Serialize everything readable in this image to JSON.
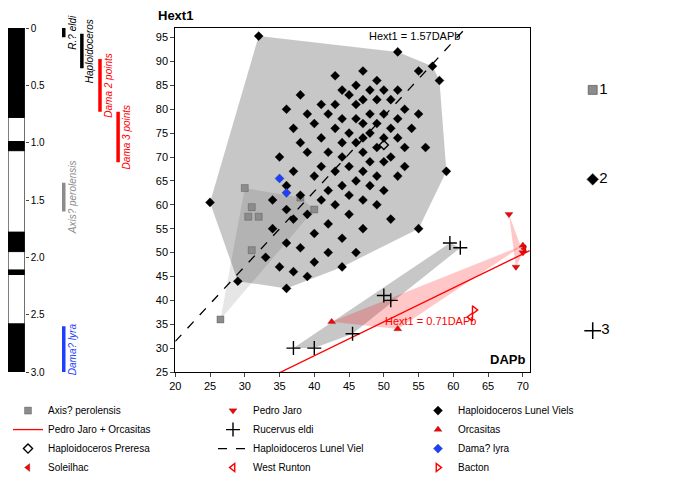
{
  "chart_data": [
    {
      "type": "scatter",
      "xlabel": "DAPb",
      "ylabel": "Hext1",
      "xlim": [
        20,
        71
      ],
      "xticks": [
        20,
        25,
        30,
        35,
        40,
        45,
        50,
        55,
        60,
        65,
        70
      ],
      "ylim": [
        25,
        97
      ],
      "yticks": [
        25,
        30,
        35,
        40,
        45,
        50,
        55,
        60,
        65,
        70,
        75,
        80,
        85,
        90,
        95
      ],
      "grid": false,
      "legend": "bottom",
      "series": [
        {
          "name": "Axis? perolensis",
          "color": "#8c8c8c",
          "marker": "square",
          "x": [
            30,
            31,
            30.5,
            32,
            31,
            26.5,
            38,
            40
          ],
          "values": [
            63.5,
            59.5,
            57.5,
            57.5,
            50.5,
            36,
            61.5,
            59
          ]
        },
        {
          "name": "Pedro Jaro",
          "color": "#ff0000",
          "marker": "triangle-down",
          "x": [
            68,
            69,
            70
          ],
          "values": [
            58,
            47,
            50
          ]
        },
        {
          "name": "Haploidoceros Lunel Viels",
          "color": "#000000",
          "marker": "diamond",
          "x": [
            32,
            52,
            57,
            55,
            47,
            43,
            49,
            46,
            44,
            48,
            50,
            52,
            38,
            45,
            47,
            49,
            51,
            41,
            43,
            46,
            53,
            36,
            39,
            42,
            48,
            50,
            55,
            44,
            46,
            52,
            40,
            47,
            49,
            37,
            43,
            51,
            54,
            45,
            48,
            41,
            47,
            50,
            52,
            38,
            44,
            46,
            49,
            53,
            56,
            39,
            42,
            47,
            51,
            35,
            44,
            48,
            50,
            45,
            41,
            53,
            37,
            43,
            47,
            49,
            40,
            52,
            46,
            44,
            36,
            48,
            42,
            50,
            38,
            45,
            34,
            41,
            47,
            25,
            43,
            49,
            36,
            39,
            45,
            51,
            37,
            42,
            34,
            47,
            40,
            44,
            36,
            38,
            42,
            46,
            33,
            40,
            35,
            44,
            37,
            39,
            29,
            36,
            58,
            59,
            55
          ],
          "values": [
            95.3,
            92,
            89,
            88,
            88,
            87,
            86,
            85,
            84,
            84,
            84,
            84,
            83,
            83,
            82,
            82,
            82,
            81,
            81,
            81,
            80,
            80,
            79,
            79,
            79,
            79,
            79,
            78,
            78,
            78,
            77,
            77,
            77,
            76,
            76,
            76,
            76,
            75,
            75,
            74,
            74,
            74,
            74,
            73,
            73,
            73,
            72,
            72,
            72,
            71,
            71,
            71,
            70,
            70,
            70,
            69,
            69,
            68,
            68,
            68,
            67,
            67,
            67,
            66,
            66,
            66,
            65,
            64,
            64,
            64,
            63,
            63,
            62,
            62,
            61,
            61,
            61,
            60.5,
            60,
            60,
            59,
            58,
            58,
            57,
            57,
            56,
            55,
            55,
            54,
            53,
            52,
            51,
            50,
            50,
            49,
            48,
            47,
            47,
            46,
            45,
            44,
            42.5,
            86,
            67,
            55
          ]
        },
        {
          "name": "Pedro Jaro + Orcasitas",
          "type": "line",
          "slope": 0.71,
          "label": "Hext1 = 0.71DAPb",
          "color": "#ff0000",
          "line_style": "solid"
        },
        {
          "name": "Rucervus eldi",
          "color": "#000000",
          "marker": "cross-thin",
          "x": [
            37,
            40,
            45.5,
            50,
            51,
            59.5,
            61
          ],
          "values": [
            30,
            30,
            33,
            41,
            40,
            52,
            51
          ]
        },
        {
          "name": "Orcasitas",
          "color": "#ff0000",
          "marker": "triangle-up",
          "x": [
            42.5,
            52,
            70
          ],
          "values": [
            35.5,
            34,
            51.5
          ]
        },
        {
          "name": "Haploidoceros Preresa",
          "color": "#000000",
          "marker": "diamond-open",
          "x": [
            50
          ],
          "values": [
            72.5
          ]
        },
        {
          "name": "Haploidoceros Lunel Viel",
          "type": "line",
          "slope": 1.57,
          "label": "Hext1 = 1.57DAPb",
          "color": "#000000",
          "line_style": "dash"
        },
        {
          "name": "Dama? lyra",
          "color": "#1f3fff",
          "marker": "diamond",
          "x": [
            35,
            36
          ],
          "values": [
            65.5,
            62.5
          ]
        },
        {
          "name": "Soleilhac",
          "color": "#ff0000",
          "marker": "triangle-left",
          "x": [
            70.2
          ],
          "values": [
            50.8
          ]
        },
        {
          "name": "West Runton",
          "color": "#ff0000",
          "marker": "triangle-left-open",
          "x": [
            62.5
          ],
          "values": [
            36.5
          ]
        },
        {
          "name": "Bacton",
          "color": "#ff0000",
          "marker": "triangle-right-open",
          "x": [
            63
          ],
          "values": [
            38
          ]
        }
      ],
      "annotations": [
        {
          "text": "1",
          "marker": "square",
          "color": "#8c8c8c"
        },
        {
          "text": "2",
          "marker": "diamond",
          "color": "#000000"
        },
        {
          "text": "3",
          "marker": "cross-thin",
          "color": "#000000"
        }
      ]
    },
    {
      "type": "range",
      "ylim": [
        3,
        0
      ],
      "yticks": [
        0,
        0.5,
        {
          "value": 1,
          "label": "1.0"
        },
        1.5,
        {
          "value": 2,
          "label": "2.0"
        },
        2.5,
        {
          "value": 3,
          "label": "3.0"
        }
      ],
      "polarity_normal": [
        [
          0,
          0.78
        ],
        [
          0.99,
          1.07
        ],
        [
          1.78,
          1.95
        ],
        [
          2.11,
          2.15
        ],
        [
          2.58,
          3
        ]
      ],
      "ranges": [
        {
          "name": "R.? eldi",
          "color": "#000000",
          "values": [
            0,
            0.08
          ]
        },
        {
          "name": "Haploidoceros",
          "color": "#000000",
          "values": [
            0.05,
            0.35
          ]
        },
        {
          "name": "Dama 2 points",
          "color": "#ff0000",
          "values": [
            0.27,
            0.73
          ]
        },
        {
          "name": "Dama 3 points",
          "color": "#ff0000",
          "values": [
            0.73,
            1.17
          ]
        },
        {
          "name": "Axis? perolensis",
          "color": "#8c8c8c",
          "values": [
            1.35,
            1.6
          ]
        },
        {
          "name": "Dama? lyra",
          "color": "#1f3fff",
          "values": [
            2.6,
            3
          ]
        }
      ]
    }
  ]
}
